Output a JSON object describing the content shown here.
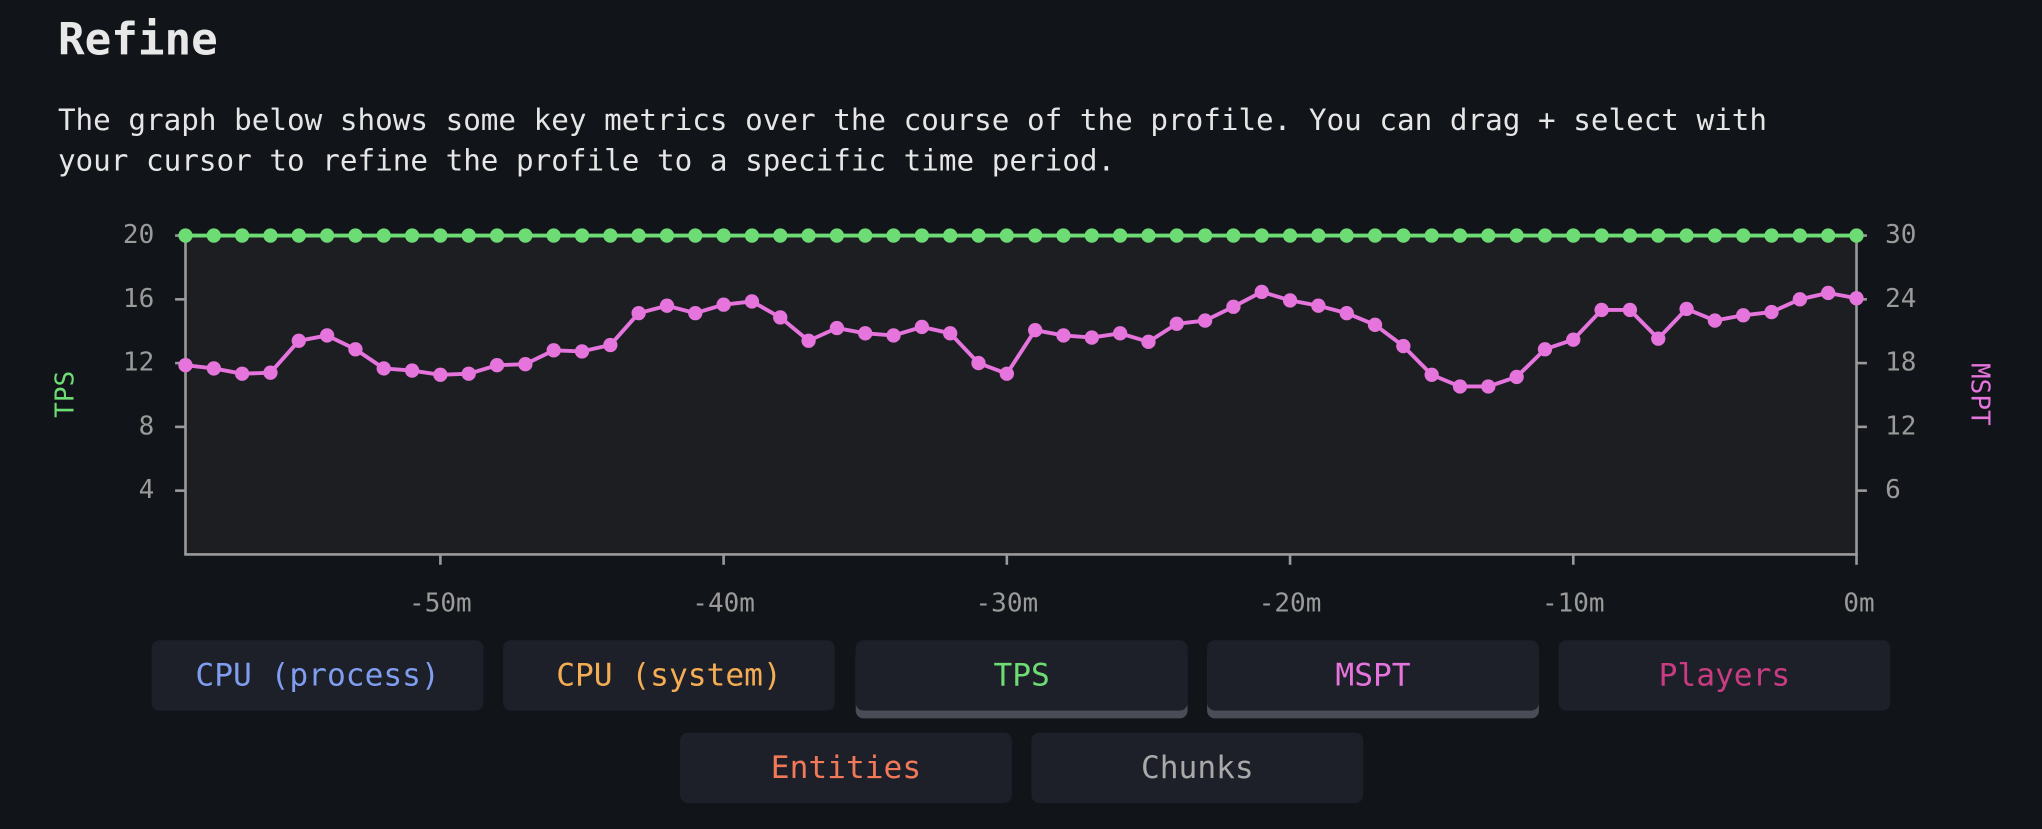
{
  "header": {
    "title": "Refine",
    "description": [
      "The graph below shows some key metrics over the course of the profile. You can drag + select with",
      "your cursor to refine the profile to a specific time period."
    ]
  },
  "chart_data": {
    "type": "line",
    "x": [
      -59,
      -58,
      -57,
      -56,
      -55,
      -54,
      -53,
      -52,
      -51,
      -50,
      -49,
      -48,
      -47,
      -46,
      -45,
      -44,
      -43,
      -42,
      -41,
      -40,
      -39,
      -38,
      -37,
      -36,
      -35,
      -34,
      -33,
      -32,
      -31,
      -30,
      -29,
      -28,
      -27,
      -26,
      -25,
      -24,
      -23,
      -22,
      -21,
      -20,
      -19,
      -18,
      -17,
      -16,
      -15,
      -14,
      -13,
      -12,
      -11,
      -10,
      -9,
      -8,
      -7,
      -6,
      -5,
      -4,
      -3,
      -2,
      -1,
      0
    ],
    "xlim": [
      -59,
      0
    ],
    "xticks": [
      {
        "value": -50,
        "label": "-50m"
      },
      {
        "value": -40,
        "label": "-40m"
      },
      {
        "value": -30,
        "label": "-30m"
      },
      {
        "value": -20,
        "label": "-20m"
      },
      {
        "value": -10,
        "label": "-10m"
      },
      {
        "value": 0,
        "label": "0m"
      }
    ],
    "ylim": [
      0,
      20
    ],
    "yticks": [
      4,
      8,
      12,
      16,
      20
    ],
    "y2lim": [
      0,
      30
    ],
    "y2ticks": [
      6,
      12,
      18,
      24,
      30
    ],
    "series": [
      {
        "name": "TPS",
        "color": "#6ddc74",
        "values": [
          20,
          20,
          20,
          20,
          20,
          20,
          20,
          20,
          20,
          20,
          20,
          20,
          20,
          20,
          20,
          20,
          20,
          20,
          20,
          20,
          20,
          20,
          20,
          20,
          20,
          20,
          20,
          20,
          20,
          20,
          20,
          20,
          20,
          20,
          20,
          20,
          20,
          20,
          20,
          20,
          20,
          20,
          20,
          20,
          20,
          20,
          20,
          20,
          20,
          20,
          20,
          20,
          20,
          20,
          20,
          20,
          20,
          20,
          20,
          20
        ]
      },
      {
        "name": "MSPT",
        "color": "#e574dc",
        "axis": "y2",
        "values": [
          17.8,
          17.5,
          17.0,
          17.1,
          20.1,
          20.6,
          19.3,
          17.5,
          17.3,
          16.9,
          17.0,
          17.8,
          17.9,
          19.2,
          19.1,
          19.7,
          22.7,
          23.4,
          22.7,
          23.5,
          23.8,
          22.3,
          20.1,
          21.3,
          20.8,
          20.6,
          21.4,
          20.8,
          18.0,
          17.0,
          21.1,
          20.6,
          20.4,
          20.8,
          20.0,
          21.7,
          22.0,
          23.3,
          24.7,
          23.9,
          23.4,
          22.7,
          21.6,
          19.6,
          16.9,
          15.8,
          15.8,
          16.7,
          19.3,
          20.2,
          23.0,
          23.0,
          20.3,
          23.1,
          22.0,
          22.5,
          22.8,
          24.0,
          24.6,
          24.1
        ]
      }
    ]
  },
  "buttons": [
    {
      "label": "CPU (process)",
      "color": "#7f9ef0",
      "active": false
    },
    {
      "label": "CPU (system)",
      "color": "#f5ad54",
      "active": false
    },
    {
      "label": "TPS",
      "color": "#6ddc74",
      "active": true
    },
    {
      "label": "MSPT",
      "color": "#e574dc",
      "active": true
    },
    {
      "label": "Players",
      "color": "#c93c82",
      "active": false
    },
    {
      "label": "Entities",
      "color": "#f2785a",
      "active": false
    },
    {
      "label": "Chunks",
      "color": "#a9a9a9",
      "active": false
    }
  ]
}
